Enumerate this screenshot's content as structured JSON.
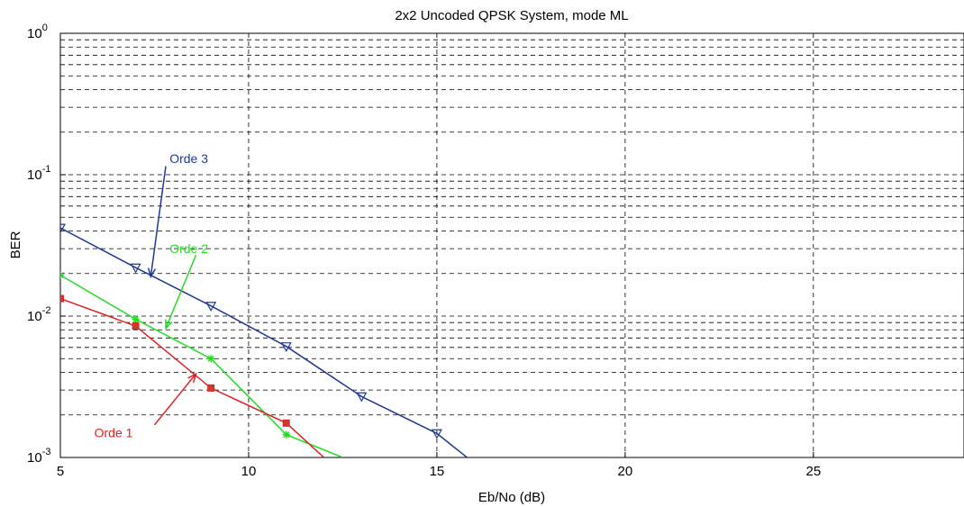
{
  "chart_data": {
    "type": "line",
    "title": "2x2 Uncoded QPSK System, mode ML",
    "xlabel": "Eb/No (dB)",
    "ylabel": "BER",
    "xlim": [
      5,
      29
    ],
    "ylim": [
      0.001,
      1
    ],
    "yscale": "log",
    "grid": true,
    "x_ticks": [
      "5",
      "10",
      "15",
      "20",
      "25"
    ],
    "y_ticks": [
      {
        "base": "10",
        "exp": "-3"
      },
      {
        "base": "10",
        "exp": "-2"
      },
      {
        "base": "10",
        "exp": "-1"
      },
      {
        "base": "10",
        "exp": "0"
      }
    ],
    "series": [
      {
        "color": "#1f3a93",
        "marker": "triangle-down",
        "x": [
          5,
          7,
          9,
          11,
          13,
          15,
          15.8
        ],
        "y": [
          0.042,
          0.022,
          0.0118,
          0.0061,
          0.0027,
          0.00148,
          0.001
        ]
      },
      {
        "color": "#22dd22",
        "marker": "star",
        "x": [
          5,
          7,
          9,
          11,
          12.5
        ],
        "y": [
          0.0195,
          0.0095,
          0.005,
          0.00145,
          0.001
        ]
      },
      {
        "color": "#e02020",
        "marker": "square",
        "x": [
          5,
          7,
          9,
          11,
          12.0
        ],
        "y": [
          0.0133,
          0.0085,
          0.0031,
          0.00175,
          0.001
        ]
      }
    ],
    "annotations": [
      {
        "text": "Orde 3",
        "color": "#1f3a93",
        "text_x": 7.9,
        "text_y": 0.13,
        "arrow_from": [
          7.8,
          0.115
        ],
        "arrow_to": [
          7.4,
          0.019
        ]
      },
      {
        "text": "Orde 2",
        "color": "#22dd22",
        "text_x": 7.9,
        "text_y": 0.03,
        "arrow_from": [
          8.6,
          0.027
        ],
        "arrow_to": [
          7.8,
          0.0082
        ]
      },
      {
        "text": "Orde 1",
        "color": "#e02020",
        "text_x": 5.9,
        "text_y": 0.0015,
        "arrow_from": [
          7.5,
          0.0017
        ],
        "arrow_to": [
          8.6,
          0.0039
        ]
      }
    ]
  }
}
